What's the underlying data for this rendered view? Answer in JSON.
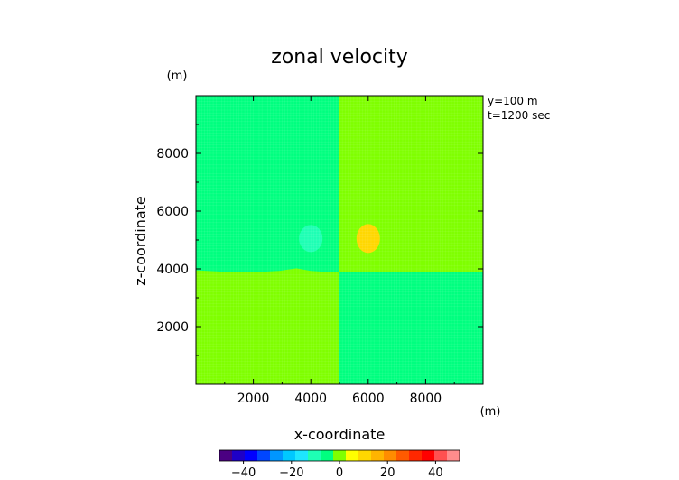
{
  "chart_data": {
    "type": "heatmap",
    "title": "zonal velocity",
    "xlabel": "x-coordinate",
    "ylabel": "z-coordinate",
    "x_unit": "(m)",
    "y_unit": "(m)",
    "xlim": [
      0,
      10000
    ],
    "ylim": [
      0,
      10000
    ],
    "xticks": [
      2000,
      4000,
      6000,
      8000
    ],
    "yticks": [
      2000,
      4000,
      6000,
      8000
    ],
    "annotations": [
      "y=100 m",
      "t=1200 sec"
    ],
    "colorbar": {
      "ticks": [
        -40,
        -20,
        0,
        20,
        40
      ],
      "range": [
        -50,
        50
      ],
      "colors": [
        "#4b0082",
        "#1e00c8",
        "#0000ff",
        "#0046ff",
        "#0096ff",
        "#00c8ff",
        "#1ee6ff",
        "#1effb4",
        "#00ff7f",
        "#7fff00",
        "#ffff00",
        "#ffd700",
        "#ffb400",
        "#ff8c00",
        "#ff5a00",
        "#ff2800",
        "#ff0000",
        "#ff5050",
        "#ff8c8c"
      ]
    },
    "regions": [
      {
        "name": "upper-left",
        "x": [
          0,
          5000
        ],
        "z": [
          3900,
          10000
        ],
        "value": -3
      },
      {
        "name": "upper-right",
        "x": [
          5000,
          10000
        ],
        "z": [
          3900,
          10000
        ],
        "value": 2
      },
      {
        "name": "lower-left",
        "x": [
          0,
          5000
        ],
        "z": [
          0,
          3900
        ],
        "value": 2
      },
      {
        "name": "lower-right",
        "x": [
          5000,
          10000
        ],
        "z": [
          0,
          3900
        ],
        "value": -3
      },
      {
        "name": "negative-anomaly",
        "center": [
          4000,
          5050
        ],
        "value": -12
      },
      {
        "name": "positive-anomaly",
        "center": [
          6000,
          5050
        ],
        "value": 10
      }
    ]
  }
}
